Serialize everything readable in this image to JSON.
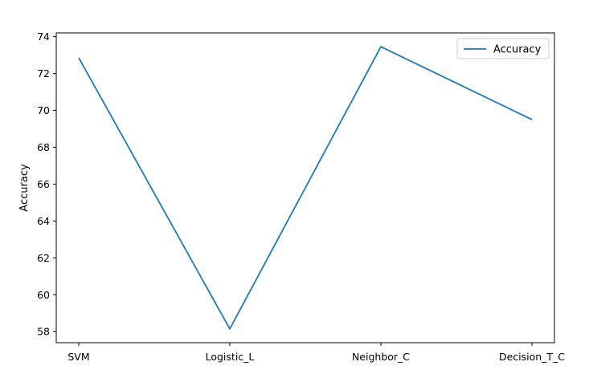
{
  "chart_data": {
    "type": "line",
    "categories": [
      "SVM",
      "Logistic_L",
      "Neighbor_C",
      "Decision_T_C"
    ],
    "series": [
      {
        "name": "Accuracy",
        "values": [
          72.85,
          58.15,
          73.45,
          69.5
        ],
        "color": "#1f77b4"
      }
    ],
    "title": "",
    "xlabel": "",
    "ylabel": "Accuracy",
    "ylim": [
      57.4,
      74.2
    ],
    "yticks": [
      58,
      60,
      62,
      64,
      66,
      68,
      70,
      72,
      74
    ],
    "grid": false,
    "legend_position": "top-right"
  }
}
